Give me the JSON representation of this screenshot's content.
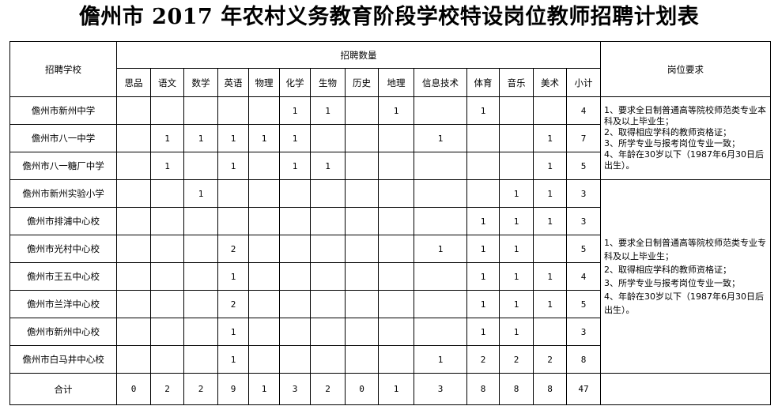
{
  "title": "儋州市 2017 年农村义务教育阶段学校特设岗位教师招聘计划表",
  "headers": {
    "school": "招聘学校",
    "quantity": "招聘数量",
    "requirements": "岗位要求",
    "subjects": [
      "思品",
      "语文",
      "数学",
      "英语",
      "物理",
      "化学",
      "生物",
      "历史",
      "地理",
      "信息技术",
      "体育",
      "音乐",
      "美术",
      "小计"
    ]
  },
  "rows": [
    {
      "school": "儋州市新州中学",
      "values": [
        "",
        "",
        "",
        "",
        "",
        "1",
        "1",
        "",
        "1",
        "",
        "1",
        "",
        "",
        "4"
      ]
    },
    {
      "school": "儋州市八一中学",
      "values": [
        "",
        "1",
        "1",
        "1",
        "1",
        "1",
        "",
        "",
        "",
        "1",
        "",
        "",
        "1",
        "7"
      ]
    },
    {
      "school": "儋州市八一糖厂中学",
      "values": [
        "",
        "1",
        "",
        "1",
        "",
        "1",
        "1",
        "",
        "",
        "",
        "",
        "",
        "1",
        "5"
      ]
    },
    {
      "school": "儋州市新州实验小学",
      "values": [
        "",
        "",
        "1",
        "",
        "",
        "",
        "",
        "",
        "",
        "",
        "",
        "1",
        "1",
        "3"
      ]
    },
    {
      "school": "儋州市排浦中心校",
      "values": [
        "",
        "",
        "",
        "",
        "",
        "",
        "",
        "",
        "",
        "",
        "1",
        "1",
        "1",
        "3"
      ]
    },
    {
      "school": "儋州市光村中心校",
      "values": [
        "",
        "",
        "",
        "2",
        "",
        "",
        "",
        "",
        "",
        "1",
        "1",
        "1",
        "",
        "5"
      ]
    },
    {
      "school": "儋州市王五中心校",
      "values": [
        "",
        "",
        "",
        "1",
        "",
        "",
        "",
        "",
        "",
        "",
        "1",
        "1",
        "1",
        "4"
      ]
    },
    {
      "school": "儋州市兰洋中心校",
      "values": [
        "",
        "",
        "",
        "2",
        "",
        "",
        "",
        "",
        "",
        "",
        "1",
        "1",
        "1",
        "5"
      ]
    },
    {
      "school": "儋州市新州中心校",
      "values": [
        "",
        "",
        "",
        "1",
        "",
        "",
        "",
        "",
        "",
        "",
        "1",
        "1",
        "",
        "3"
      ]
    },
    {
      "school": "儋州市白马井中心校",
      "values": [
        "",
        "",
        "",
        "1",
        "",
        "",
        "",
        "",
        "",
        "1",
        "2",
        "2",
        "2",
        "8"
      ]
    }
  ],
  "total": {
    "label": "合计",
    "values": [
      "0",
      "2",
      "2",
      "9",
      "1",
      "3",
      "2",
      "0",
      "1",
      "3",
      "8",
      "8",
      "8",
      "47"
    ]
  },
  "requirement_blocks": [
    {
      "rows": 3,
      "text": [
        "1、要求全日制普通高等院校师范类专业本科及以上毕业生；",
        "2、取得相应学科的教师资格证；",
        "3、所学专业与报考岗位专业一致；",
        "4、年龄在30岁以下（1987年6月30日后出生）。"
      ]
    },
    {
      "rows": 7,
      "text": [
        "1、要求全日制普通高等院校师范类专业专科及以上毕业生；",
        "2、取得相应学科的教师资格证；",
        "3、所学专业与报考岗位专业一致；",
        "4、年龄在30岁以下（1987年6月30日后出生）。"
      ]
    }
  ]
}
